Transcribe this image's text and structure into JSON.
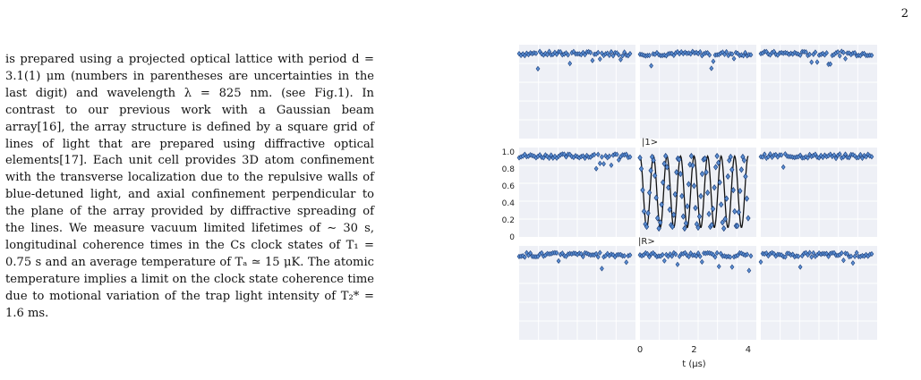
{
  "page": {
    "number": "2"
  },
  "body_text": {
    "paragraph": "is prepared using a projected optical lattice with period d = 3.1(1) μm (numbers in parentheses are uncertainties in the last digit) and wavelength λ = 825 nm. (see Fig.1). In contrast to our previous work with a Gaussian beam array[16], the array structure is defined by a square grid of lines of light that are prepared using diffractive optical elements[17]. Each unit cell provides 3D atom confinement with the transverse localization due to the repulsive walls of blue-detuned light, and axial confinement perpendicular to the plane of the array provided by diffractive spreading of the lines. We measure vacuum limited lifetimes of ∼ 30 s, longitudinal coherence times in the Cs clock states of T₁ = 0.75 s and an average temperature of Tₐ ≃ 15 μK. The atomic temperature implies a limit on the clock state coherence time due to motional variation of the trap light intensity of T₂* = 1.6 ms."
  },
  "figure": {
    "colors": {
      "marker": "#5b8fd4",
      "marker_edge": "#1d3f7a",
      "fit_line": "#111111",
      "panel_bg": "#eef0f6",
      "grid": "#ffffff"
    },
    "label_one": "|1>",
    "label_r": "|R>",
    "xlabel": "t (μs)",
    "x_ticks": [
      "0",
      "2",
      "4"
    ],
    "y_ticks": [
      "1.0",
      "0.8",
      "0.6",
      "0.4",
      "0.2",
      "0"
    ]
  },
  "chart_data": {
    "type": "scatter",
    "title": "",
    "xlabel": "t (μs)",
    "ylabel": "",
    "xlim": [
      0,
      4.3
    ],
    "ylim": [
      0,
      1.05
    ],
    "grid": true,
    "layout": "3x3 grid of panels, center panel shows Rabi oscillation; surrounding 8 panels show neighboring sites staying near 1",
    "center_panel": {
      "series": [
        {
          "x": [
            0.0,
            0.05,
            0.1,
            0.15,
            0.2,
            0.25,
            0.3,
            0.35,
            0.4,
            0.45,
            0.5,
            0.55,
            0.6,
            0.65,
            0.7,
            0.75,
            0.8,
            0.85,
            0.9,
            0.95,
            1.0,
            1.05,
            1.1,
            1.15,
            1.2,
            1.25,
            1.3,
            1.35,
            1.4,
            1.45,
            1.5,
            1.55,
            1.6,
            1.65,
            1.7,
            1.75,
            1.8,
            1.85,
            1.9,
            1.95,
            2.0,
            2.05,
            2.1,
            2.15,
            2.2,
            2.25,
            2.3,
            2.35,
            2.4,
            2.45,
            2.5,
            2.55,
            2.6,
            2.65,
            2.7,
            2.75,
            2.8,
            2.85,
            2.9,
            2.95,
            3.0,
            3.05,
            3.1,
            3.15,
            3.2,
            3.25,
            3.3,
            3.35,
            3.4,
            3.45,
            3.5,
            3.55,
            3.6,
            3.65,
            3.7,
            3.75,
            3.8,
            3.85,
            3.9,
            3.95,
            4.0
          ],
          "y": [
            0.93,
            0.8,
            0.55,
            0.3,
            0.15,
            0.12,
            0.28,
            0.52,
            0.78,
            0.94,
            0.9,
            0.72,
            0.46,
            0.22,
            0.1,
            0.17,
            0.38,
            0.64,
            0.86,
            0.95,
            0.82,
            0.58,
            0.32,
            0.14,
            0.12,
            0.26,
            0.5,
            0.76,
            0.92,
            0.91,
            0.74,
            0.48,
            0.24,
            0.1,
            0.16,
            0.36,
            0.62,
            0.85,
            0.95,
            0.84,
            0.6,
            0.34,
            0.15,
            0.11,
            0.24,
            0.48,
            0.74,
            0.91,
            0.92,
            0.76,
            0.52,
            0.27,
            0.12,
            0.14,
            0.33,
            0.58,
            0.82,
            0.95,
            0.87,
            0.64,
            0.38,
            0.17,
            0.1,
            0.21,
            0.45,
            0.71,
            0.9,
            0.94,
            0.79,
            0.55,
            0.3,
            0.13,
            0.13,
            0.29,
            0.54,
            0.79,
            0.94,
            0.9,
            0.71,
            0.45,
            0.22
          ]
        }
      ]
    },
    "neighbor_panels_level": 0.95
  }
}
